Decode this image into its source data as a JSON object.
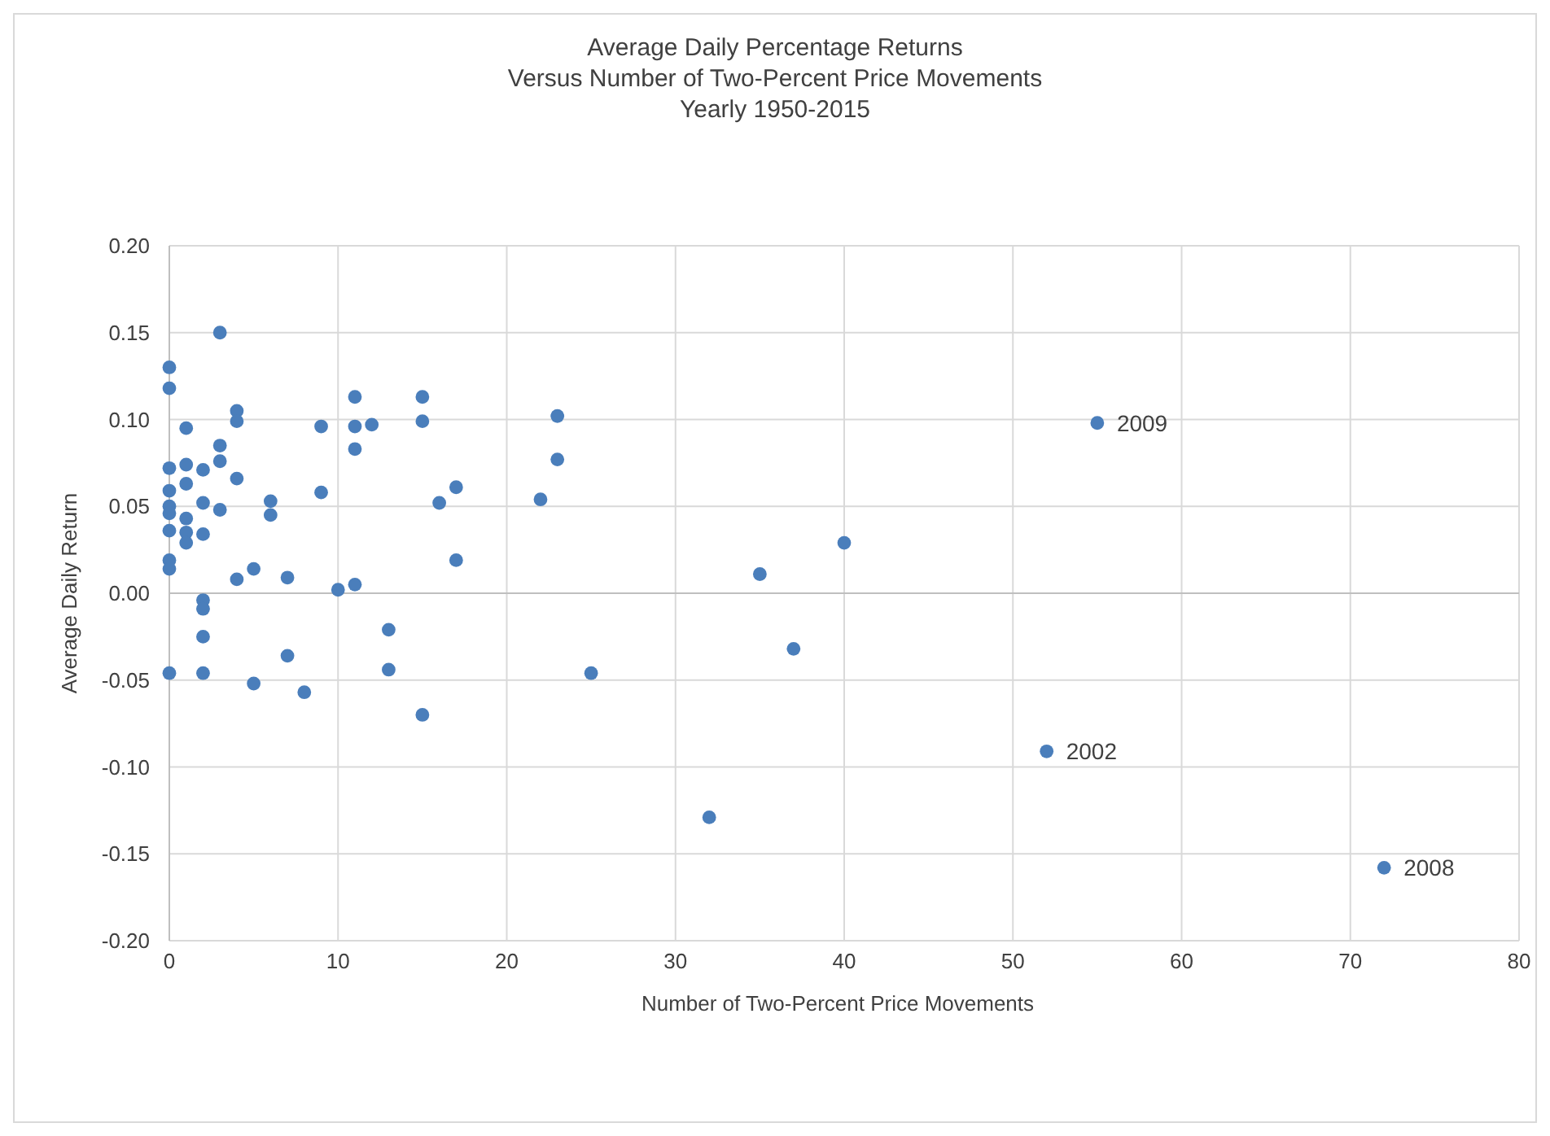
{
  "chart_data": {
    "type": "scatter",
    "title": "Average Daily Percentage Returns\nVersus Number of Two-Percent Price Movements\nYearly 1950-2015",
    "xlabel": "Number of Two-Percent Price Movements",
    "ylabel": "Average Daily Return",
    "x": [
      0,
      0,
      0,
      0,
      0,
      0,
      0,
      0,
      0,
      0,
      1,
      1,
      1,
      1,
      1,
      1,
      2,
      2,
      2,
      2,
      2,
      2,
      2,
      3,
      3,
      3,
      3,
      4,
      4,
      4,
      4,
      5,
      5,
      6,
      6,
      7,
      7,
      8,
      9,
      9,
      10,
      11,
      11,
      11,
      11,
      12,
      13,
      13,
      15,
      15,
      15,
      16,
      17,
      17,
      22,
      23,
      23,
      25,
      32,
      35,
      37,
      40,
      52,
      55,
      72
    ],
    "series": [
      {
        "color": "#4a7ebb",
        "values": [
          0.13,
          0.118,
          0.072,
          0.059,
          0.05,
          0.046,
          0.036,
          0.019,
          0.014,
          -0.046,
          0.095,
          0.074,
          0.063,
          0.043,
          0.035,
          0.029,
          0.071,
          0.052,
          0.034,
          -0.004,
          -0.009,
          -0.025,
          -0.046,
          0.15,
          0.085,
          0.076,
          0.048,
          0.105,
          0.099,
          0.066,
          0.008,
          0.014,
          -0.052,
          0.053,
          0.045,
          0.009,
          -0.036,
          -0.057,
          0.096,
          0.058,
          0.002,
          0.113,
          0.096,
          0.083,
          0.005,
          0.097,
          -0.021,
          -0.044,
          0.113,
          0.099,
          -0.07,
          0.052,
          0.061,
          0.019,
          0.054,
          0.102,
          0.077,
          -0.046,
          -0.129,
          0.011,
          -0.032,
          0.029,
          -0.091,
          0.098,
          -0.158
        ]
      }
    ],
    "xlim": [
      0,
      80
    ],
    "xticks": [
      0,
      10,
      20,
      30,
      40,
      50,
      60,
      70,
      80
    ],
    "ylim": [
      -0.2,
      0.2
    ],
    "yticks": [
      {
        "value": -0.2,
        "label": "-0.20"
      },
      {
        "value": -0.15,
        "label": "-0.15"
      },
      {
        "value": -0.1,
        "label": "-0.10"
      },
      {
        "value": -0.05,
        "label": "-0.05"
      },
      {
        "value": 0,
        "label": "0.00"
      },
      {
        "value": 0.05,
        "label": "0.05"
      },
      {
        "value": 0.1,
        "label": "0.10"
      },
      {
        "value": 0.15,
        "label": "0.15"
      },
      {
        "value": 0.2,
        "label": "0.20"
      }
    ],
    "annotations": [
      {
        "text": "2009",
        "x": 55,
        "y": 0.098
      },
      {
        "text": "2002",
        "x": 52,
        "y": -0.091
      },
      {
        "text": "2008",
        "x": 72,
        "y": -0.158
      }
    ],
    "grid": true,
    "marker": "circle"
  }
}
